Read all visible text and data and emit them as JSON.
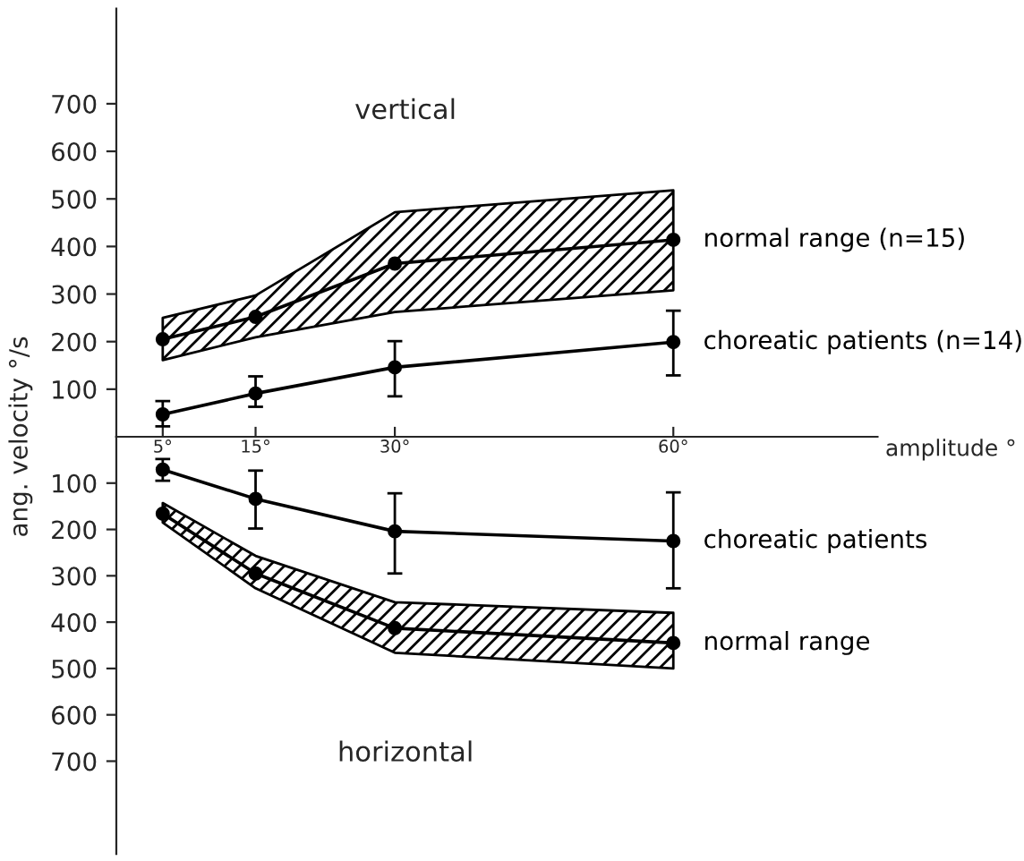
{
  "chart_data": [
    {
      "type": "line",
      "title": "vertical",
      "ylabel": "ang. velocity °/s",
      "xlabel": "amplitude °",
      "x": [
        5,
        15,
        30,
        60
      ],
      "xlim": [
        0,
        82
      ],
      "xticks": [
        {
          "value": 5,
          "label": "5°"
        },
        {
          "value": 15,
          "label": "15°"
        },
        {
          "value": 30,
          "label": "30°"
        },
        {
          "value": 60,
          "label": "60°"
        }
      ],
      "ylim": [
        0,
        900
      ],
      "yticks": [
        100,
        200,
        300,
        400,
        500,
        600,
        700
      ],
      "marker": "circle",
      "grid": false,
      "series": [
        {
          "name": "normal range (n=15)",
          "color": "#000000",
          "values": [
            205,
            252,
            364,
            414
          ],
          "lower": [
            161,
            209,
            262,
            308
          ],
          "upper": [
            250,
            297,
            472,
            518
          ]
        },
        {
          "name": "choreatic patients (n=14)",
          "color": "#000000",
          "values": [
            47,
            91,
            146,
            199
          ],
          "errors": [
            [
              22,
              75
            ],
            [
              63,
              127
            ],
            [
              85,
              201
            ],
            [
              129,
              265
            ]
          ]
        }
      ]
    },
    {
      "type": "line",
      "title": "horizontal",
      "x": [
        5,
        15,
        30,
        60
      ],
      "xlim": [
        0,
        82
      ],
      "ylim": [
        900,
        0
      ],
      "yticks": [
        100,
        200,
        300,
        400,
        500,
        600,
        700
      ],
      "marker": "circle",
      "grid": false,
      "tick_labels": "y",
      "series": [
        {
          "name": "choreatic patients",
          "color": "#000000",
          "values": [
            71,
            134,
            204,
            225
          ],
          "errors": [
            [
              48,
              95
            ],
            [
              73,
              198
            ],
            [
              122,
              295
            ],
            [
              120,
              327
            ]
          ]
        },
        {
          "name": "normal range",
          "color": "#000000",
          "values": [
            166,
            295,
            413,
            445
          ],
          "lower": [
            143,
            257,
            357,
            380
          ],
          "upper": [
            185,
            327,
            466,
            500
          ]
        }
      ]
    }
  ]
}
